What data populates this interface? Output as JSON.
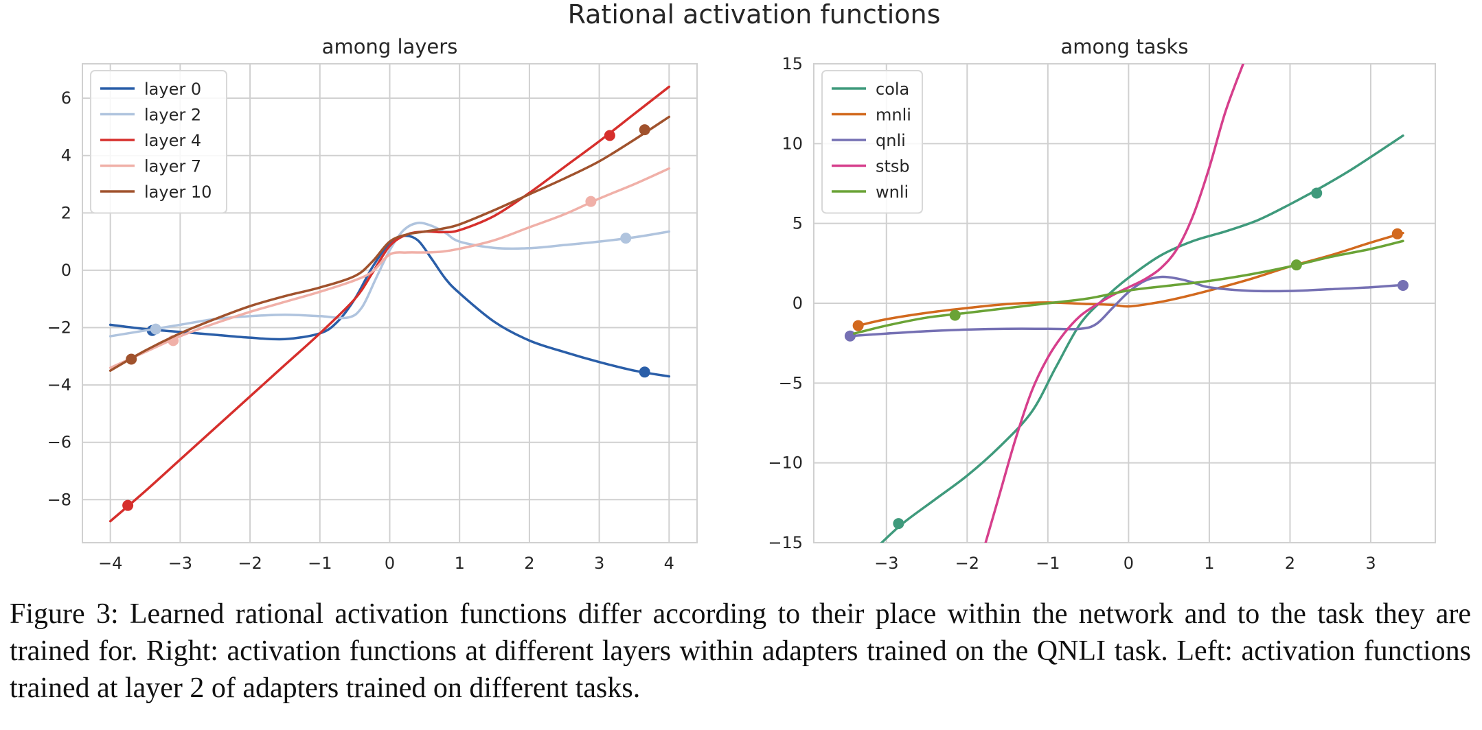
{
  "figure": {
    "suptitle": "Rational activation functions",
    "caption": "Figure 3: Learned rational activation functions differ according to their place within the network and to the task they are trained for. Right: activation functions at different layers within adapters trained on the QNLI task. Left: activation functions trained at layer 2 of adapters trained on different tasks."
  },
  "chart_data": [
    {
      "type": "line",
      "title": "among layers",
      "xlabel": "",
      "ylabel": "",
      "xlim": [
        -4.4,
        4.4
      ],
      "ylim": [
        -9.5,
        7.2
      ],
      "xticks": [
        -4,
        -3,
        -2,
        -1,
        0,
        1,
        2,
        3,
        4
      ],
      "xtick_labels": [
        "−4",
        "−3",
        "−2",
        "−1",
        "0",
        "1",
        "2",
        "3",
        "4"
      ],
      "yticks": [
        -8,
        -6,
        -4,
        -2,
        0,
        2,
        4,
        6
      ],
      "ytick_labels": [
        "−8",
        "−6",
        "−4",
        "−2",
        "0",
        "2",
        "4",
        "6"
      ],
      "grid": true,
      "legend": "top-left",
      "series": [
        {
          "name": "layer 0",
          "color": "#2a5ea8",
          "x": [
            -4,
            -3.5,
            -3,
            -2.5,
            -2,
            -1.5,
            -1,
            -0.75,
            -0.5,
            -0.25,
            0,
            0.2,
            0.4,
            0.6,
            0.8,
            1,
            1.5,
            2,
            2.5,
            3,
            3.5,
            4
          ],
          "y": [
            -1.9,
            -2.05,
            -2.15,
            -2.25,
            -2.35,
            -2.4,
            -2.2,
            -1.8,
            -1.0,
            0.1,
            0.95,
            1.2,
            1.05,
            0.4,
            -0.3,
            -0.8,
            -1.8,
            -2.45,
            -2.85,
            -3.2,
            -3.5,
            -3.7
          ],
          "markers": [
            {
              "x": -3.4,
              "y": -2.1
            },
            {
              "x": 3.65,
              "y": -3.55
            }
          ]
        },
        {
          "name": "layer 2",
          "color": "#b0c4de",
          "x": [
            -4,
            -3.5,
            -3,
            -2.5,
            -2,
            -1.5,
            -1,
            -0.6,
            -0.4,
            -0.2,
            0,
            0.2,
            0.4,
            0.6,
            0.8,
            1,
            1.5,
            2,
            2.5,
            3,
            3.5,
            4
          ],
          "y": [
            -2.3,
            -2.1,
            -1.9,
            -1.7,
            -1.6,
            -1.55,
            -1.6,
            -1.65,
            -1.3,
            -0.3,
            0.7,
            1.4,
            1.65,
            1.55,
            1.3,
            1.0,
            0.78,
            0.77,
            0.88,
            1.0,
            1.15,
            1.35
          ],
          "markers": [
            {
              "x": -3.35,
              "y": -2.05
            },
            {
              "x": 3.38,
              "y": 1.12
            }
          ]
        },
        {
          "name": "layer 4",
          "color": "#d62f2c",
          "x": [
            -4,
            -3.5,
            -3,
            -2.5,
            -2,
            -1.5,
            -1,
            -0.5,
            -0.25,
            0,
            0.25,
            0.5,
            0.75,
            1,
            1.5,
            2,
            2.5,
            3,
            3.5,
            4
          ],
          "y": [
            -8.75,
            -7.7,
            -6.6,
            -5.5,
            -4.4,
            -3.3,
            -2.2,
            -1.0,
            -0.1,
            0.85,
            1.25,
            1.35,
            1.33,
            1.4,
            1.9,
            2.7,
            3.6,
            4.5,
            5.45,
            6.4
          ],
          "markers": [
            {
              "x": -3.75,
              "y": -8.2
            },
            {
              "x": 3.15,
              "y": 4.7
            }
          ]
        },
        {
          "name": "layer 7",
          "color": "#f0b0a8",
          "x": [
            -4,
            -3.5,
            -3,
            -2.5,
            -2,
            -1.5,
            -1,
            -0.5,
            -0.25,
            0,
            0.25,
            0.5,
            0.75,
            1,
            1.5,
            2,
            2.5,
            3,
            3.5,
            4
          ],
          "y": [
            -3.4,
            -2.85,
            -2.3,
            -1.85,
            -1.45,
            -1.1,
            -0.75,
            -0.35,
            -0.05,
            0.55,
            0.62,
            0.62,
            0.65,
            0.75,
            1.05,
            1.5,
            1.95,
            2.5,
            3.0,
            3.55
          ],
          "markers": [
            {
              "x": -3.1,
              "y": -2.45
            },
            {
              "x": 2.88,
              "y": 2.4
            }
          ]
        },
        {
          "name": "layer 10",
          "color": "#a0522d",
          "x": [
            -4,
            -3.5,
            -3,
            -2.5,
            -2,
            -1.5,
            -1,
            -0.5,
            -0.25,
            0,
            0.25,
            0.5,
            0.75,
            1,
            1.5,
            2,
            2.5,
            3,
            3.5,
            4
          ],
          "y": [
            -3.5,
            -2.8,
            -2.2,
            -1.7,
            -1.25,
            -0.9,
            -0.6,
            -0.2,
            0.3,
            1.0,
            1.25,
            1.35,
            1.45,
            1.6,
            2.1,
            2.65,
            3.2,
            3.8,
            4.55,
            5.35
          ],
          "markers": [
            {
              "x": -3.7,
              "y": -3.1
            },
            {
              "x": 3.65,
              "y": 4.9
            }
          ]
        }
      ]
    },
    {
      "type": "line",
      "title": "among tasks",
      "xlabel": "",
      "ylabel": "",
      "xlim": [
        -3.9,
        3.8
      ],
      "ylim": [
        -15,
        15
      ],
      "xticks": [
        -3,
        -2,
        -1,
        0,
        1,
        2,
        3
      ],
      "xtick_labels": [
        "−3",
        "−2",
        "−1",
        "0",
        "1",
        "2",
        "3"
      ],
      "yticks": [
        -15,
        -10,
        -5,
        0,
        5,
        10,
        15
      ],
      "ytick_labels": [
        "−15",
        "−10",
        "−5",
        "0",
        "5",
        "10",
        "15"
      ],
      "grid": true,
      "legend": "top-left",
      "series": [
        {
          "name": "cola",
          "color": "#3f9a7c",
          "x": [
            -3.1,
            -2.8,
            -2.4,
            -2,
            -1.6,
            -1.2,
            -0.9,
            -0.6,
            -0.3,
            0,
            0.4,
            0.8,
            1.2,
            1.6,
            2,
            2.4,
            2.8,
            3.4
          ],
          "y": [
            -15.2,
            -13.8,
            -12.3,
            -10.8,
            -9.0,
            -6.8,
            -4.0,
            -1.3,
            0.3,
            1.6,
            3.0,
            3.9,
            4.5,
            5.2,
            6.2,
            7.3,
            8.5,
            10.5
          ],
          "markers": [
            {
              "x": -2.85,
              "y": -13.8
            },
            {
              "x": 2.33,
              "y": 6.9
            }
          ]
        },
        {
          "name": "mnli",
          "color": "#d2691e",
          "x": [
            -3.35,
            -3,
            -2.5,
            -2,
            -1.5,
            -1,
            -0.5,
            -0.2,
            0,
            0.3,
            0.6,
            1,
            1.5,
            2,
            2.5,
            3,
            3.4
          ],
          "y": [
            -1.4,
            -1.0,
            -0.6,
            -0.3,
            -0.05,
            0.05,
            -0.05,
            -0.1,
            -0.2,
            0.0,
            0.3,
            0.8,
            1.5,
            2.3,
            3.0,
            3.8,
            4.4
          ],
          "markers": [
            {
              "x": -3.35,
              "y": -1.4
            },
            {
              "x": 3.33,
              "y": 4.35
            }
          ]
        },
        {
          "name": "qnli",
          "color": "#7570b3",
          "x": [
            -3.45,
            -3,
            -2.5,
            -2,
            -1.5,
            -1,
            -0.6,
            -0.4,
            -0.2,
            0,
            0.2,
            0.4,
            0.6,
            0.8,
            1,
            1.5,
            2,
            2.5,
            3,
            3.4
          ],
          "y": [
            -2.05,
            -1.9,
            -1.75,
            -1.65,
            -1.6,
            -1.6,
            -1.6,
            -1.3,
            -0.3,
            0.7,
            1.4,
            1.65,
            1.55,
            1.3,
            1.0,
            0.78,
            0.77,
            0.88,
            1.0,
            1.15
          ],
          "markers": [
            {
              "x": -3.45,
              "y": -2.05
            },
            {
              "x": 3.4,
              "y": 1.12
            }
          ]
        },
        {
          "name": "stsb",
          "color": "#d63f8c",
          "x": [
            -1.8,
            -1.6,
            -1.4,
            -1.2,
            -1.0,
            -0.8,
            -0.6,
            -0.4,
            -0.2,
            0,
            0.2,
            0.4,
            0.6,
            0.8,
            1.0,
            1.2,
            1.42
          ],
          "y": [
            -15.5,
            -12.0,
            -8.5,
            -5.5,
            -3.4,
            -1.9,
            -0.8,
            -0.1,
            0.5,
            1.0,
            1.5,
            2.2,
            3.4,
            5.5,
            8.5,
            12.0,
            15.0
          ],
          "markers": []
        },
        {
          "name": "wnli",
          "color": "#6aa336",
          "x": [
            -3.4,
            -3,
            -2.5,
            -2,
            -1.5,
            -1,
            -0.5,
            0,
            0.5,
            1,
            1.5,
            2,
            2.5,
            3,
            3.4
          ],
          "y": [
            -1.9,
            -1.4,
            -0.9,
            -0.6,
            -0.3,
            0.0,
            0.3,
            0.8,
            1.1,
            1.4,
            1.8,
            2.3,
            2.9,
            3.4,
            3.9
          ],
          "markers": [
            {
              "x": -2.15,
              "y": -0.75
            },
            {
              "x": 2.08,
              "y": 2.4
            }
          ]
        }
      ]
    }
  ]
}
